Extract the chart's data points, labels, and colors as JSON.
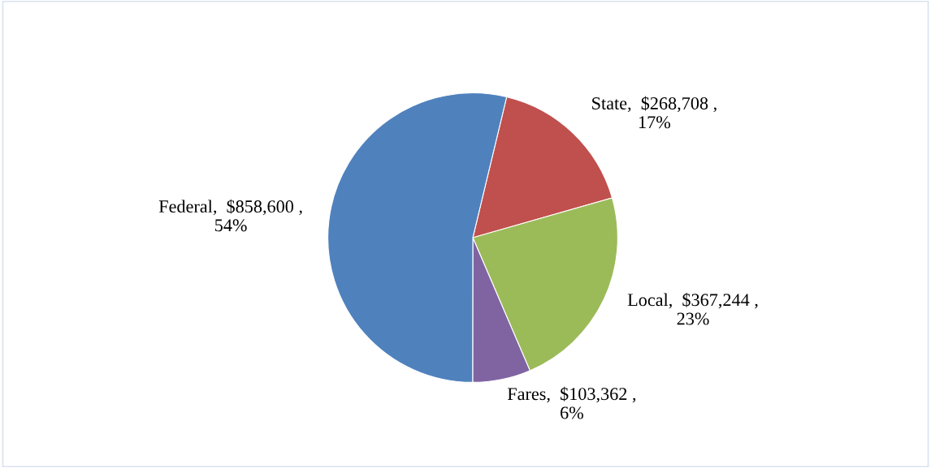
{
  "chart_data": {
    "type": "pie",
    "categories": [
      "State",
      "Local",
      "Fares",
      "Federal"
    ],
    "values": [
      268708,
      367244,
      103362,
      858600
    ],
    "value_labels": [
      "$268,708 ,\n17%",
      "$367,244 ,\n23%",
      "$103,362 ,\n6%",
      "$858,600 ,\n54%"
    ],
    "colors": [
      "#c0504d",
      "#9bbb59",
      "#8064a2",
      "#4f81bd"
    ],
    "legend": false
  }
}
